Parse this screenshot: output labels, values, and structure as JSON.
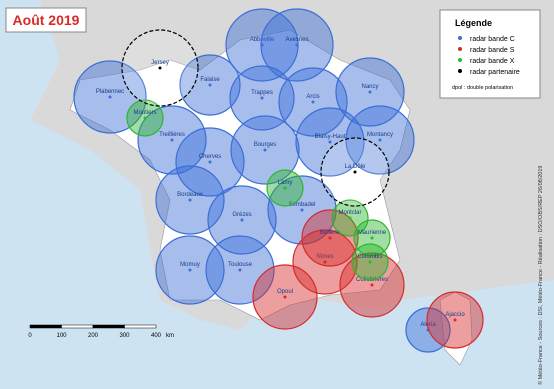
{
  "title": "Août 2019",
  "legend": {
    "title": "Légende",
    "items": [
      {
        "label": "radar bande C",
        "color": "#3c6fd6"
      },
      {
        "label": "radar bande S",
        "color": "#d62a2a"
      },
      {
        "label": "radar bande X",
        "color": "#2fb52f"
      },
      {
        "label": "radar partenaire",
        "color": "#000000"
      }
    ],
    "note": "dpol : double polarisation"
  },
  "radars_c": [
    "Plabennec",
    "Treillières",
    "Falaise",
    "Abbeville",
    "Avesnes",
    "Trappes",
    "Arcis",
    "Nancy",
    "Montancy",
    "Cherves",
    "Bourges",
    "Blaisy-Haut",
    "Bordeaux",
    "Grèzes",
    "Sembadel",
    "Momuy",
    "Toulouse",
    "Aléria"
  ],
  "radars_s": [
    "Nîmes",
    "Opoul",
    "Collobrières",
    "Bollène",
    "Ajaccio"
  ],
  "radars_x": [
    "Moutiers",
    "Lamy",
    "Montclar",
    "Maurienne",
    "Colombis"
  ],
  "radars_partner": [
    "La Dôle",
    "Jersey"
  ],
  "scale": {
    "ticks": [
      "0",
      "100",
      "200",
      "300",
      "400"
    ],
    "unit": "km"
  },
  "credit": "© Météo-France - Sources : DSI, Météo-France - Réalisation : DSO/OBS/REP 26/08/2019"
}
